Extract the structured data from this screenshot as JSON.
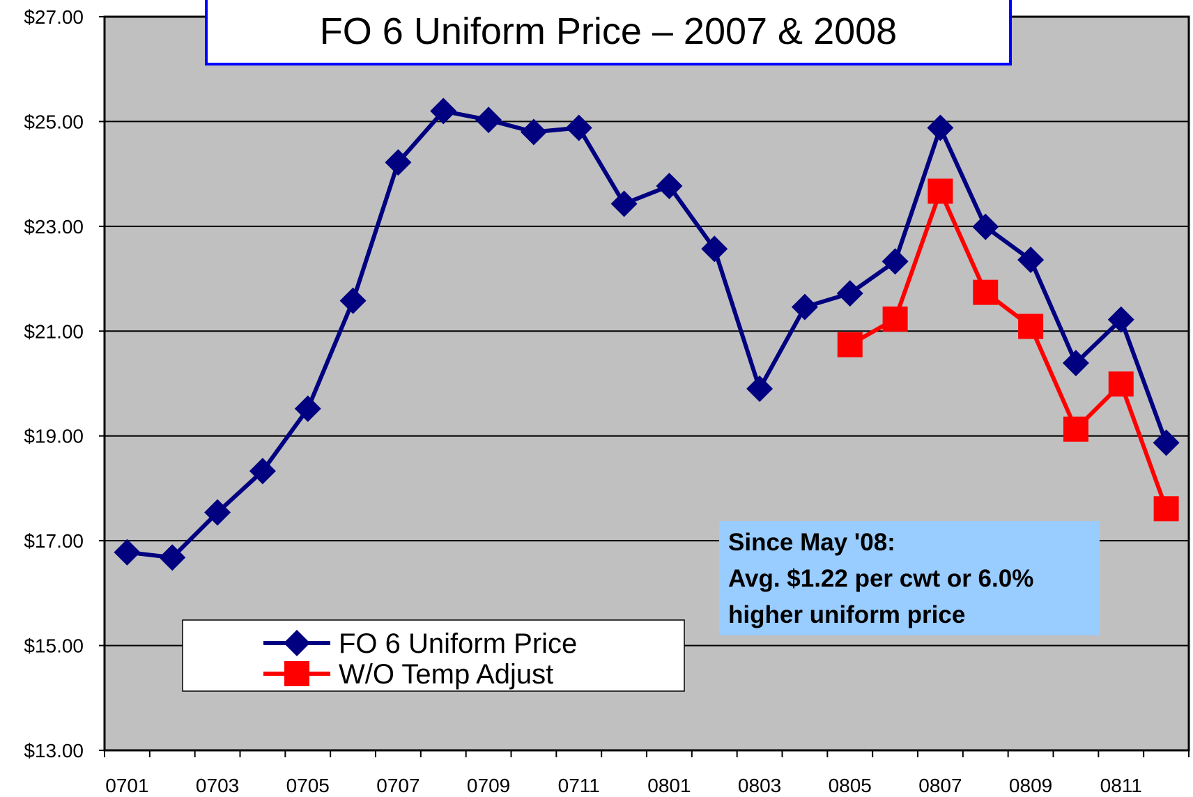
{
  "chart_data": {
    "type": "line",
    "title": "FO 6 Uniform Price – 2007 & 2008",
    "categories": [
      "0701",
      null,
      "0703",
      null,
      "0705",
      null,
      "0707",
      null,
      "0709",
      null,
      "0711",
      null,
      "0801",
      null,
      "0803",
      null,
      "0805",
      null,
      "0807",
      null,
      "0809",
      null,
      "0811",
      null
    ],
    "series": [
      {
        "name": "FO 6 Uniform Price",
        "color": "#000080",
        "marker": "diamond",
        "values": [
          16.78,
          16.68,
          17.54,
          18.33,
          19.52,
          21.58,
          24.22,
          25.2,
          25.03,
          24.8,
          24.88,
          23.43,
          23.77,
          22.57,
          19.9,
          21.46,
          21.72,
          22.33,
          24.88,
          22.99,
          22.36,
          20.39,
          21.22,
          18.87
        ]
      },
      {
        "name": "W/O Temp Adjust",
        "color": "#ff0000",
        "marker": "square",
        "values": [
          null,
          null,
          null,
          null,
          null,
          null,
          null,
          null,
          null,
          null,
          null,
          null,
          null,
          null,
          null,
          null,
          20.74,
          21.23,
          23.67,
          21.74,
          21.09,
          19.13,
          19.99,
          17.61
        ]
      }
    ],
    "ylim": [
      13,
      27
    ],
    "yticks": [
      {
        "value": 13,
        "label": "$13.00"
      },
      {
        "value": 15,
        "label": "$15.00"
      },
      {
        "value": 17,
        "label": "$17.00"
      },
      {
        "value": 19,
        "label": "$19.00"
      },
      {
        "value": 21,
        "label": "$21.00"
      },
      {
        "value": 23,
        "label": "$23.00"
      },
      {
        "value": 25,
        "label": "$25.00"
      },
      {
        "value": 27,
        "label": "$27.00"
      }
    ],
    "grid": true,
    "annotation": [
      "Since May '08:",
      "Avg. $1.22 per cwt or 6.0%",
      "higher uniform price"
    ]
  }
}
